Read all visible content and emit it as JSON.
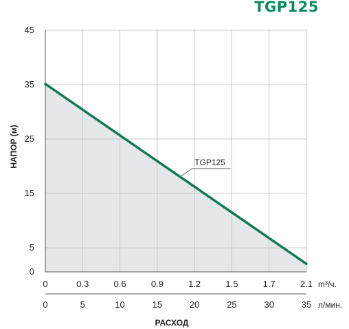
{
  "chart_data": {
    "type": "area",
    "title": "TGP125",
    "ylabel": "НАПОР (м)",
    "xlabel": "РАСХОД",
    "y_ticks": [
      "45",
      "35",
      "25",
      "15",
      "5",
      "0"
    ],
    "ylim": [
      0,
      45
    ],
    "x_axes": [
      {
        "unit": "m³/ч.",
        "ticks": [
          "0",
          "0.3",
          "0.6",
          "0.9",
          "1.2",
          "1.5",
          "1.7",
          "2.1"
        ]
      },
      {
        "unit": "л/мин.",
        "ticks": [
          "0",
          "5",
          "10",
          "15",
          "20",
          "25",
          "30",
          "35"
        ]
      }
    ],
    "xlim": [
      0,
      35
    ],
    "series": [
      {
        "name": "TGP125",
        "x": [
          0,
          35
        ],
        "y": [
          35,
          1.5
        ]
      }
    ],
    "grid": true,
    "colors": {
      "line": "#117a53",
      "fill": "#e4e8ea",
      "title": "#0a8a5e"
    }
  }
}
